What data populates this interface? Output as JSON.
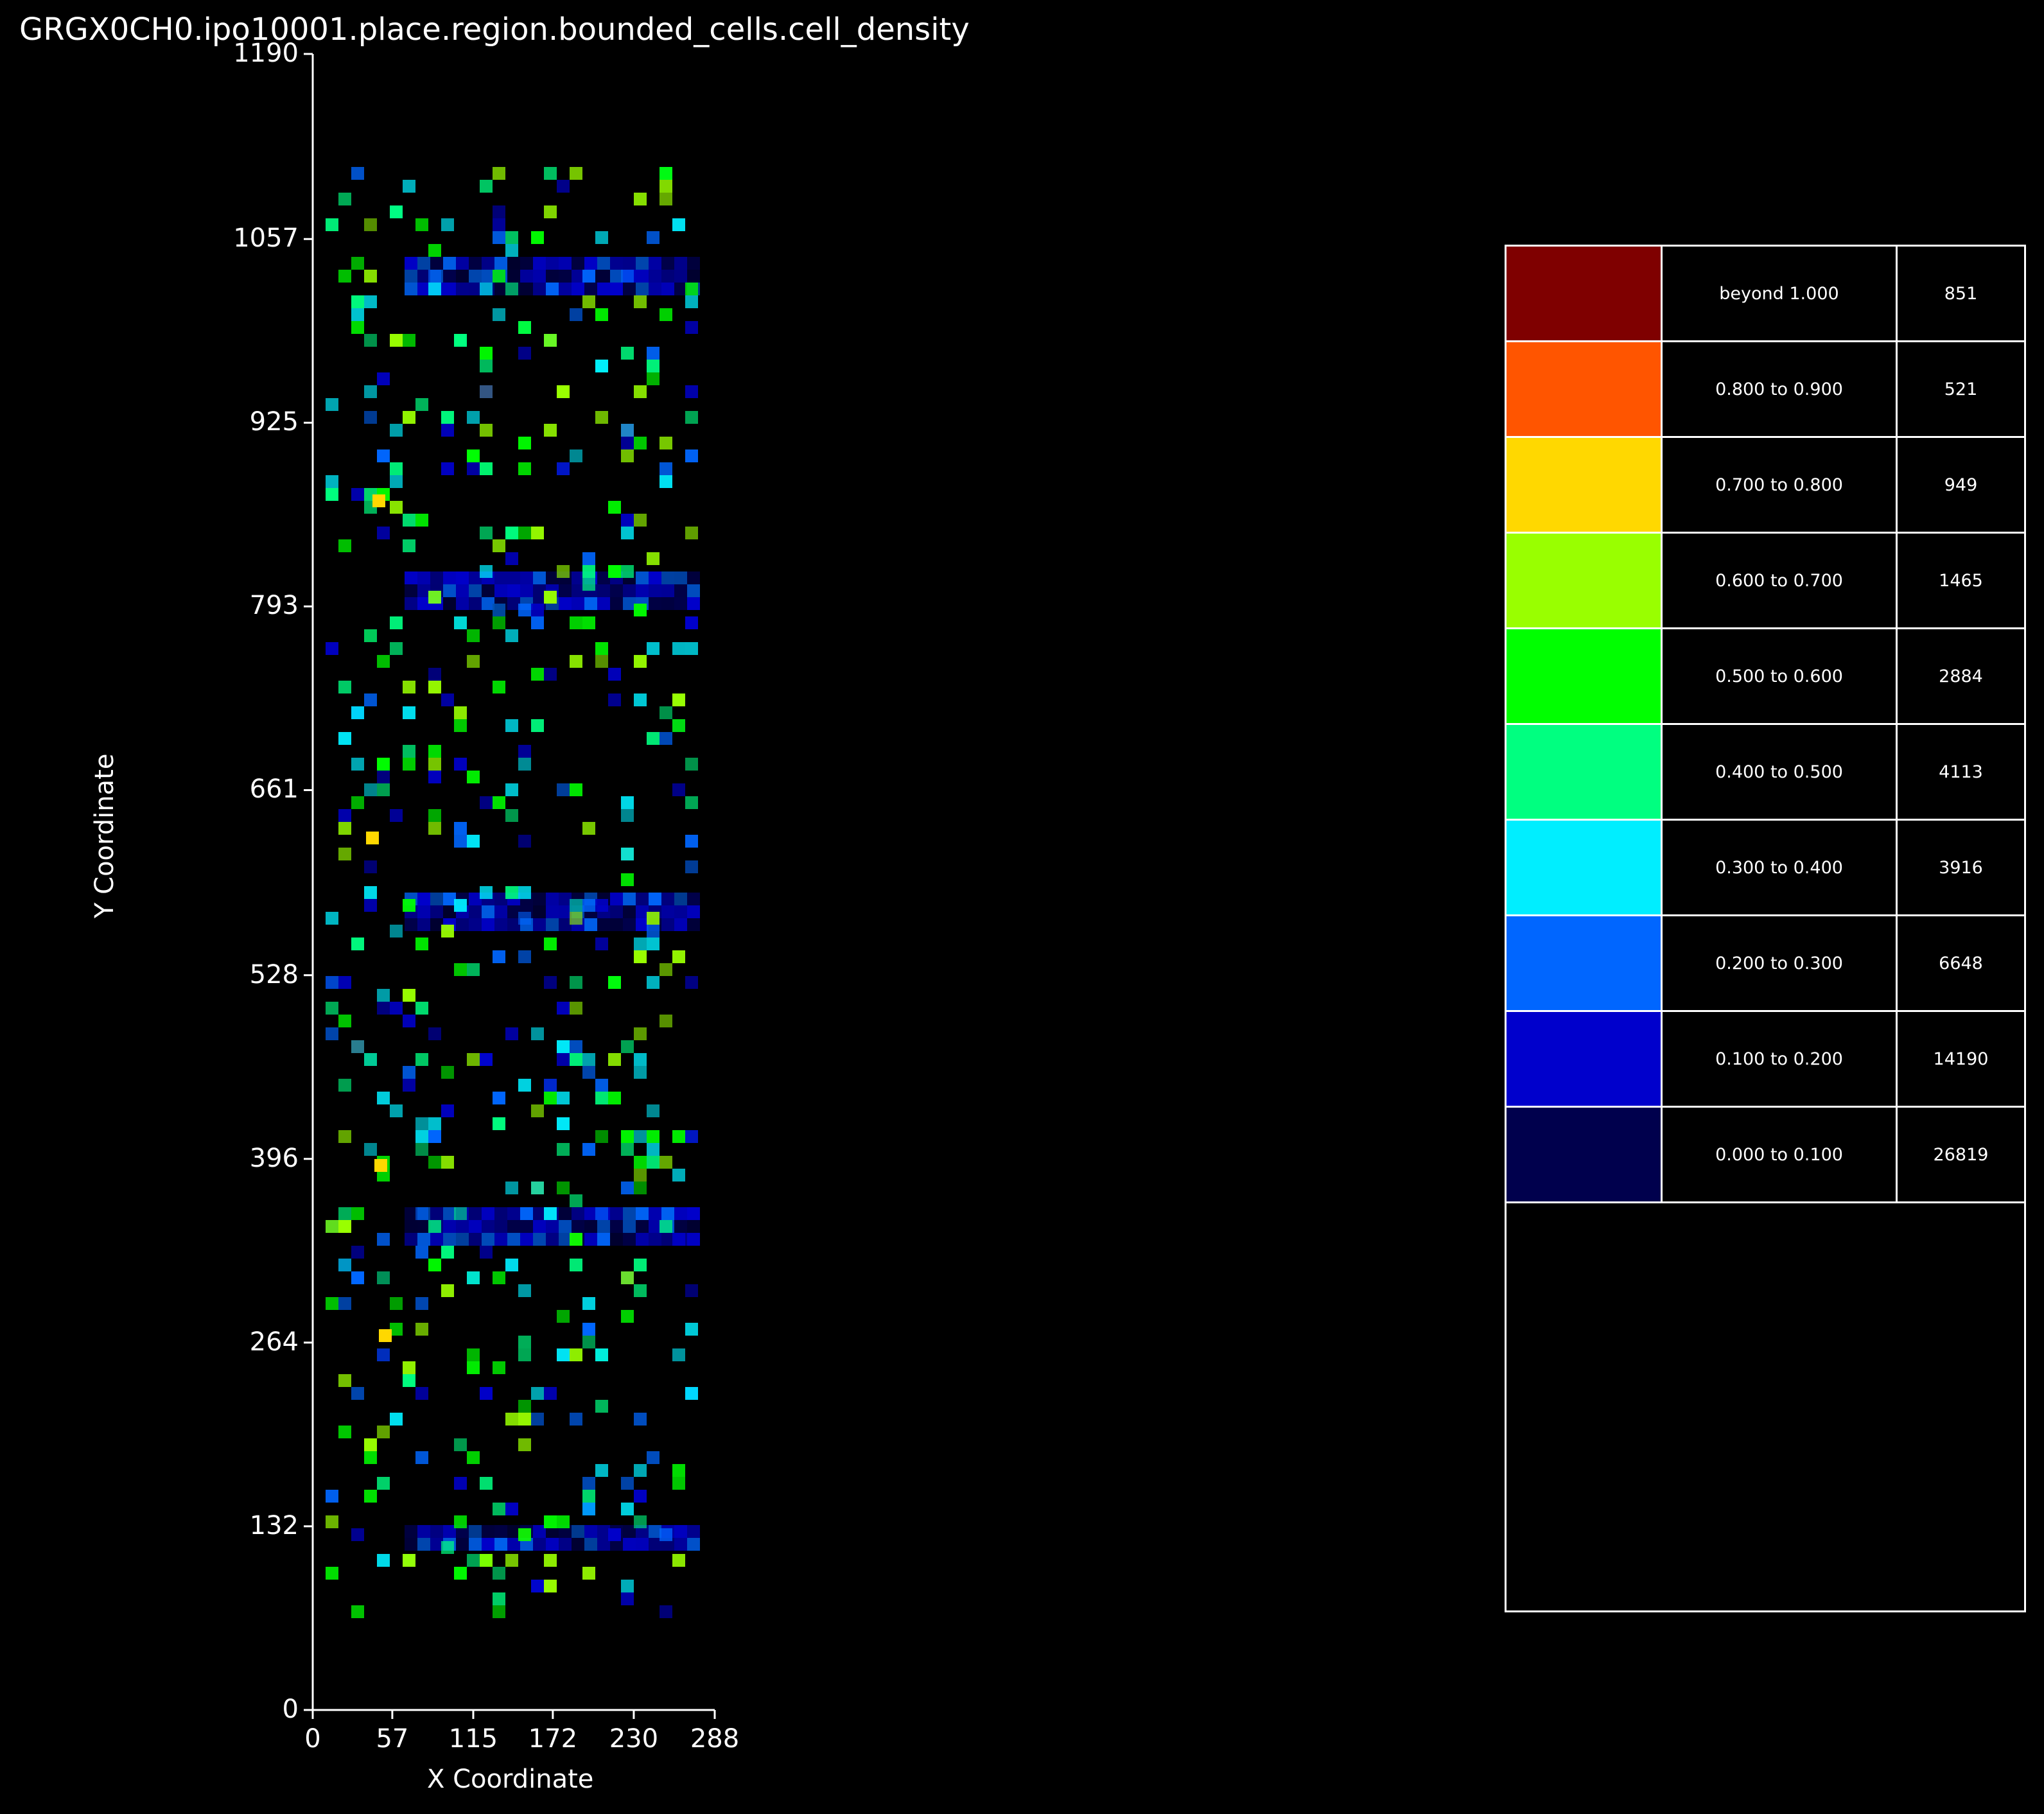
{
  "title": "GRGX0CH0.ipo10001.place.region.bounded_cells.cell_density",
  "chart_data": {
    "type": "heatmap",
    "xlabel": "X Coordinate",
    "ylabel": "Y Coordinate",
    "xlim": [
      0,
      288
    ],
    "ylim": [
      0,
      1190
    ],
    "xticks": [
      "0",
      "57",
      "115",
      "172",
      "230",
      "288"
    ],
    "yticks": [
      "0",
      "132",
      "264",
      "396",
      "528",
      "661",
      "793",
      "925",
      "1057",
      "1190"
    ],
    "legend": [
      {
        "range": "beyond 1.000",
        "count": "851",
        "color": "#7f0000"
      },
      {
        "range": "0.800 to 0.900",
        "count": "521",
        "color": "#ff5500"
      },
      {
        "range": "0.700 to 0.800",
        "count": "949",
        "color": "#ffd800"
      },
      {
        "range": "0.600 to 0.700",
        "count": "1465",
        "color": "#99ff00"
      },
      {
        "range": "0.500 to 0.600",
        "count": "2884",
        "color": "#00ff00"
      },
      {
        "range": "0.400 to 0.500",
        "count": "4113",
        "color": "#00ff80"
      },
      {
        "range": "0.300 to 0.400",
        "count": "3916",
        "color": "#00eeff"
      },
      {
        "range": "0.200 to 0.300",
        "count": "6648",
        "color": "#0066ff"
      },
      {
        "range": "0.100 to 0.200",
        "count": "14190",
        "color": "#0000cc"
      },
      {
        "range": "0.000 to 0.100",
        "count": "26819",
        "color": "#00004d"
      }
    ],
    "legend_placement": "right",
    "grid": false
  }
}
